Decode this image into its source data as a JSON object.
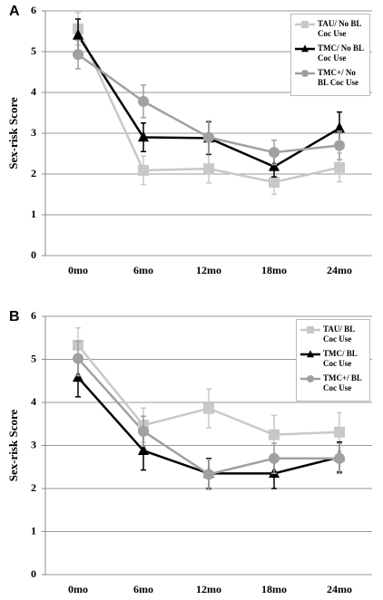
{
  "chart_data": [
    {
      "type": "line",
      "panel_label": "A",
      "ylabel": "Sex-risk Score",
      "categories": [
        "0mo",
        "6mo",
        "12mo",
        "18mo",
        "24mo"
      ],
      "ylim": [
        0,
        6
      ],
      "yticks": [
        0,
        1,
        2,
        3,
        4,
        5,
        6
      ],
      "grid": true,
      "legend": "upper right",
      "series": [
        {
          "name": "TAU/ No BL Coc Use",
          "color": "#c8c8c8",
          "marker": "square",
          "values": [
            5.56,
            2.09,
            2.13,
            1.8,
            2.16
          ],
          "errors": [
            0.4,
            0.35,
            0.35,
            0.3,
            0.35
          ]
        },
        {
          "name": "TMC/ No BL Coc Use",
          "color": "#000000",
          "marker": "triangle",
          "values": [
            5.4,
            2.9,
            2.88,
            2.18,
            3.12
          ],
          "errors": [
            0.4,
            0.35,
            0.4,
            0.25,
            0.4
          ]
        },
        {
          "name": "TMC+/ No BL Coc Use",
          "color": "#a0a0a0",
          "marker": "circle",
          "values": [
            4.93,
            3.78,
            2.9,
            2.53,
            2.7
          ],
          "errors": [
            0.35,
            0.4,
            0.4,
            0.3,
            0.35
          ]
        }
      ]
    },
    {
      "type": "line",
      "panel_label": "B",
      "ylabel": "Sex-risk Score",
      "categories": [
        "0mo",
        "6mo",
        "12mo",
        "18mo",
        "24mo"
      ],
      "ylim": [
        0,
        6
      ],
      "yticks": [
        0,
        1,
        2,
        3,
        4,
        5,
        6
      ],
      "grid": true,
      "legend": "upper right",
      "series": [
        {
          "name": "TAU/ BL Coc Use",
          "color": "#c8c8c8",
          "marker": "square",
          "values": [
            5.33,
            3.47,
            3.86,
            3.25,
            3.31
          ],
          "errors": [
            0.4,
            0.4,
            0.45,
            0.45,
            0.45
          ]
        },
        {
          "name": "TMC/ BL Coc Use",
          "color": "#000000",
          "marker": "triangle",
          "values": [
            4.58,
            2.88,
            2.35,
            2.35,
            2.73
          ],
          "errors": [
            0.45,
            0.45,
            0.35,
            0.35,
            0.35
          ]
        },
        {
          "name": "TMC+/ BL Coc Use",
          "color": "#a0a0a0",
          "marker": "circle",
          "values": [
            5.02,
            3.33,
            2.33,
            2.7,
            2.7
          ],
          "errors": [
            0.4,
            0.35,
            0.35,
            0.35,
            0.35
          ]
        }
      ]
    }
  ]
}
